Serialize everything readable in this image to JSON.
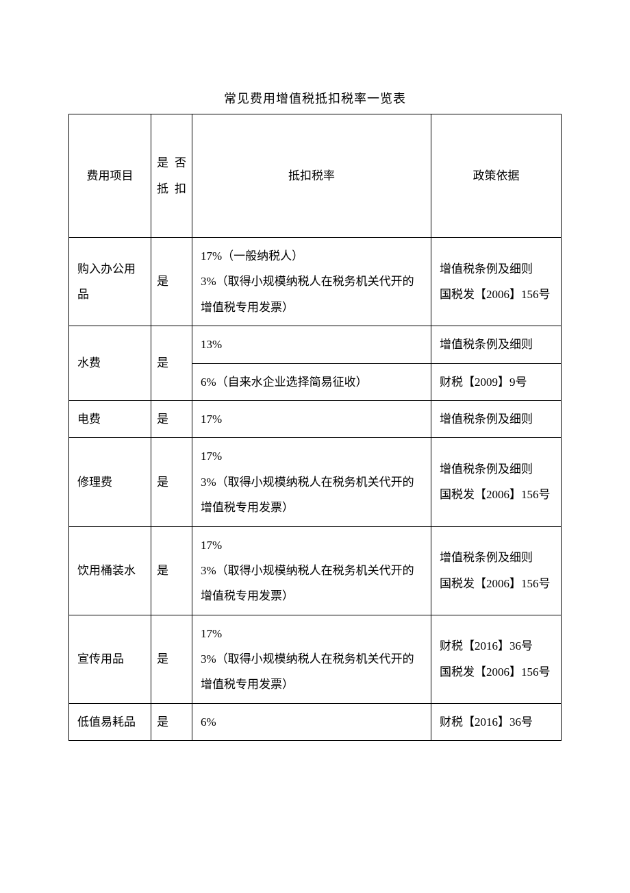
{
  "page": {
    "background_color": "#ffffff",
    "text_color": "#000000",
    "border_color": "#000000",
    "font_family": "SimSun",
    "title": "常见费用增值税抵扣税率一览表",
    "headers": {
      "item": "费用项目",
      "deduct": "是否抵扣",
      "rate": "抵扣税率",
      "basis": "政策依据"
    },
    "rows": [
      {
        "item": "购入办公用品",
        "deduct": "是",
        "rate": "17%（一般纳税人）\n3%（取得小规模纳税人在税务机关代开的增值税专用发票）",
        "basis": "增值税条例及细则\n国税发【2006】156号"
      },
      {
        "item": "水费",
        "deduct": "是",
        "rates": [
          "13%",
          "6%（自来水企业选择简易征收）"
        ],
        "bases": [
          "增值税条例及细则",
          "财税【2009】9号"
        ]
      },
      {
        "item": "电费",
        "deduct": "是",
        "rate": "17%",
        "basis": "增值税条例及细则"
      },
      {
        "item": "修理费",
        "deduct": "是",
        "rate": "17%\n3%（取得小规模纳税人在税务机关代开的增值税专用发票）",
        "basis": "增值税条例及细则\n国税发【2006】156号"
      },
      {
        "item": "饮用桶装水",
        "deduct": "是",
        "rate": "17%\n3%（取得小规模纳税人在税务机关代开的增值税专用发票）",
        "basis": "增值税条例及细则\n国税发【2006】156号"
      },
      {
        "item": "宣传用品",
        "deduct": "是",
        "rate": "17%\n3%（取得小规模纳税人在税务机关代开的增值税专用发票）",
        "basis": "财税【2016】36号\n国税发【2006】156号"
      },
      {
        "item": "低值易耗品",
        "deduct": "是",
        "rate": "6%",
        "basis": "财税【2016】36号"
      }
    ]
  }
}
